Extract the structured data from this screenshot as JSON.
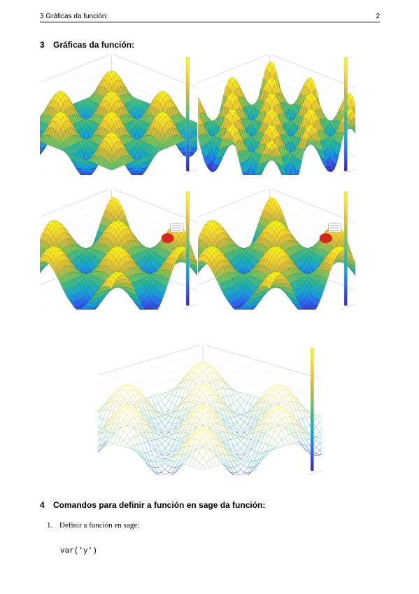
{
  "header": {
    "running_title": "3 Gráficas da función:",
    "page_number": "2"
  },
  "sections": [
    {
      "number": "3",
      "title": "Gráficas da función:"
    },
    {
      "number": "4",
      "title": "Comandos para definir a función en sage da función:"
    }
  ],
  "list": {
    "items": [
      {
        "marker": "1.",
        "text": "Definir a función en sage:"
      }
    ]
  },
  "code": {
    "line": "var('y')"
  },
  "figures": {
    "colormap": [
      "#3e26a8",
      "#2c5df5",
      "#13a3da",
      "#2bb996",
      "#7dc357",
      "#d6ba3a",
      "#f9d92c",
      "#f9fb15"
    ],
    "datatip_color": "#d7261e",
    "plots": [
      {
        "style": "solid",
        "datatip": false
      },
      {
        "style": "solid",
        "datatip": false
      },
      {
        "style": "solid",
        "datatip": true
      },
      {
        "style": "solid",
        "datatip": true
      },
      {
        "style": "mesh",
        "datatip": false
      }
    ]
  }
}
